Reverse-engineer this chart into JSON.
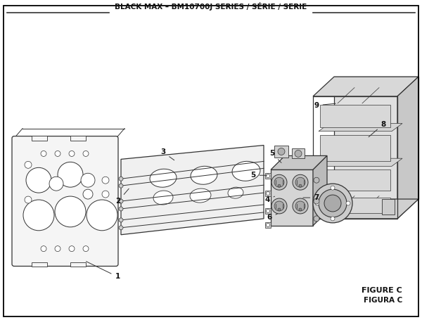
{
  "title": "BLACK MAX – BM10700J SERIES / SÉRIE / SERIE",
  "figure_label": "FIGURE C",
  "figure_label2": "FIGURA C",
  "bg_color": "#ffffff",
  "border_color": "#000000",
  "line_color": "#333333",
  "gray_light": "#e8e8e8",
  "gray_mid": "#d0d0d0",
  "gray_dark": "#aaaaaa"
}
